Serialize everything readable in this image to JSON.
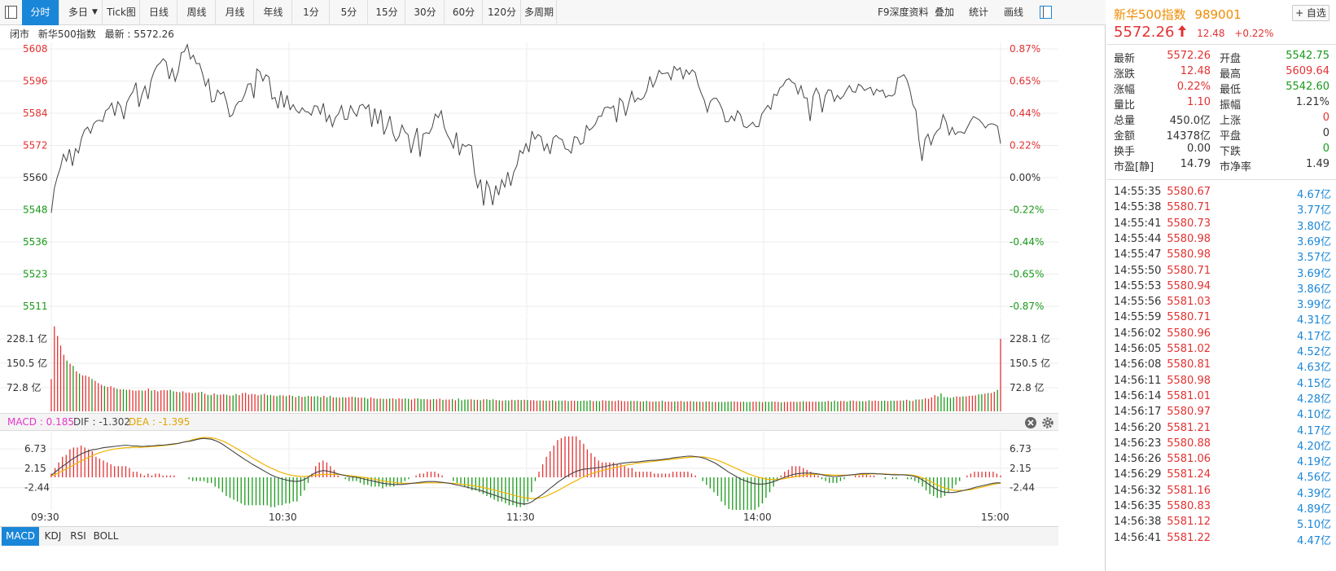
{
  "toolbar": {
    "tabs": [
      "分时",
      "多日",
      "Tick图",
      "日线",
      "周线",
      "月线",
      "年线",
      "1分",
      "5分",
      "15分",
      "30分",
      "60分",
      "120分",
      "多周期"
    ],
    "active_tab": "分时",
    "tools": [
      "F9深度资料",
      "叠加",
      "统计",
      "画线"
    ]
  },
  "info": {
    "status": "闭市",
    "name": "新华500指数",
    "latest_label": "最新",
    "latest_value": "5572.26"
  },
  "chart": {
    "price_left_ticks": [
      "5608",
      "5596",
      "5584",
      "5572",
      "5560",
      "5548",
      "5536",
      "5523",
      "5511"
    ],
    "price_right_ticks": [
      "0.87%",
      "0.65%",
      "0.44%",
      "0.22%",
      "0.00%",
      "-0.22%",
      "-0.44%",
      "-0.65%",
      "-0.87%"
    ],
    "volume_ticks": [
      "228.1 亿",
      "150.5 亿",
      "72.8 亿"
    ],
    "macd_ticks": [
      "6.73",
      "2.15",
      "-2.44"
    ],
    "x_labels": [
      "09:30",
      "10:30",
      "11:30",
      "14:00",
      "15:00"
    ],
    "macd_header": {
      "macd_label": "MACD : 0.185",
      "dif_label": "DIF : -1.302",
      "dea_label": "DEA : -1.395"
    },
    "colors": {
      "up": "#e33232",
      "down": "#1a9a1a",
      "line": "#444444",
      "dea": "#f0b400",
      "macd_label": "#e535c9",
      "accent": "#1a86d8",
      "name": "#f08c00"
    },
    "price_series": [
      5546.2,
      5555.4,
      5559.7,
      5563.1,
      5568.3,
      5565.7,
      5570.2,
      5563.9,
      5570.4,
      5568.8,
      5574.3,
      5577.4,
      5578.5,
      5576.2,
      5579.8,
      5580.9,
      5581.1,
      5580.6,
      5584.7,
      5585.6,
      5587.6,
      5582.8,
      5588.1,
      5586.2,
      5581.5,
      5587.8,
      5590.1,
      5591.9,
      5595.3,
      5586.1,
      5590.8,
      5594.0,
      5589.1,
      5596.1,
      5599.5,
      5601.7,
      5602.7,
      5604.3,
      5603.1,
      5596.6,
      5600.6,
      5595.8,
      5599.6,
      5606.6,
      5607.0,
      5609.6,
      5604.2,
      5605.6,
      5602.4,
      5602.5,
      5598.7,
      5594.0,
      5596.6,
      5588.0,
      5588.2,
      5592.5,
      5590.9,
      5591.8,
      5587.9,
      5582.4,
      5583.2,
      5586.6,
      5588.1,
      5588.3,
      5590.9,
      5594.7,
      5594.9,
      5589.4,
      5600.4,
      5599.4,
      5595.9,
      5598.2,
      5597.4,
      5589.1,
      5589.7,
      5585.6,
      5592.2,
      5585.9,
      5590.5,
      5585.1,
      5587.0,
      5584.8,
      5583.8,
      5585.8,
      5584.4,
      5584.2,
      5583.0,
      5586.6,
      5586.4,
      5583.4,
      5587.5,
      5580.6,
      5583.0,
      5578.7,
      5582.2,
      5583.5,
      5586.6,
      5581.4,
      5581.5,
      5586.6,
      5584.3,
      5582.6,
      5586.6,
      5587.1,
      5585.4,
      5586.9,
      5578.6,
      5585.6,
      5579.7,
      5585.1,
      5575.7,
      5578.7,
      5582.7,
      5576.3,
      5573.2,
      5574.9,
      5579.3,
      5576.7,
      5575.7,
      5568.7,
      5573.9,
      5578.2,
      5567.3,
      5575.9,
      5576.4,
      5576.1,
      5578.5,
      5583.4,
      5582.1,
      5584.7,
      5578.4,
      5575.5,
      5573.5,
      5570.6,
      5576.5,
      5567.9,
      5572.1,
      5571.2,
      5571.9,
      5571.5,
      5561.0,
      5555.7,
      5558.8,
      5548.9,
      5558.2,
      5555.5,
      5549.1,
      5556.5,
      5552.9,
      5558.7,
      5555.9,
      5561.6,
      5556.4,
      5561.6,
      5564.0,
      5569.7,
      5568.6,
      5572.3,
      5569.1,
      5577.0,
      5574.0,
      5575.7,
      5574.9,
      5569.7,
      5572.2,
      5568.4,
      5574.4,
      5575.4,
      5574.3,
      5573.8,
      5570.3,
      5570.0,
      5568.7,
      5574.9,
      5574.6,
      5572.0,
      5572.6,
      5579.1,
      5577.3,
      5578.3,
      5579.7,
      5582.6,
      5582.6,
      5585.8,
      5586.1,
      5585.6,
      5586.5,
      5580.3,
      5589.4,
      5588.1,
      5582.8,
      5587.6,
      5592.0,
      5588.0,
      5589.5,
      5588.8,
      5589.7,
      5592.3,
      5597.6,
      5593.6,
      5596.2,
      5599.9,
      5598.6,
      5598.8,
      5599.0,
      5596.4,
      5601.4,
      5599.9,
      5600.9,
      5596.7,
      5600.1,
      5598.4,
      5600.1,
      5599.1,
      5594.3,
      5591.2,
      5588.6,
      5584.2,
      5588.2,
      5589.3,
      5589.4,
      5587.6,
      5585.0,
      5580.5,
      5580.6,
      5582.7,
      5580.9,
      5584.7,
      5583.1,
      5578.8,
      5578.3,
      5579.2,
      5580.3,
      5578.7,
      5578.7,
      5583.4,
      5585.1,
      5586.7,
      5585.2,
      5590.9,
      5590.4,
      5593.3,
      5594.1,
      5596.2,
      5596.8,
      5595.5,
      5594.8,
      5591.0,
      5594.1,
      5589.6,
      5589.5,
      5580.8,
      5590.3,
      5593.2,
      5590.9,
      5584.1,
      5590.3,
      5592.6,
      5592.3,
      5588.2,
      5590.5,
      5589.1,
      5590.2,
      5592.4,
      5594.2,
      5591.9,
      5591.6,
      5594.7,
      5593.9,
      5592.3,
      5593.0,
      5593.5,
      5590.6,
      5592.8,
      5591.9,
      5592.5,
      5589.7,
      5590.5,
      5590.2,
      5591.0,
      5597.1,
      5597.5,
      5598.3,
      5596.4,
      5592.6,
      5586.9,
      5584.9,
      5573.7,
      5565.8,
      5574.0,
      5575.9,
      5571.8,
      5575.4,
      5577.1,
      5578.1,
      5583.2,
      5580.5,
      5575.6,
      5578.4,
      5575.7,
      5576.7,
      5576.7,
      5576.1,
      5578.4,
      5580.7,
      5582.5,
      5581.9,
      5581.2,
      5579.9,
      5578.2,
      5579.5,
      5579.8,
      5579.5,
      5578.8,
      5572.3
    ],
    "volume_series": [
      13.3,
      35.2,
      31.2,
      27.2,
      23.4,
      21.0,
      19.7,
      18.8,
      16.5,
      15.6,
      14.9,
      14.8,
      14.3,
      13.4,
      12.6,
      11.7,
      11.0,
      10.5,
      10.1,
      10.4,
      9.8,
      9.3,
      9.1,
      9.1,
      8.9,
      9.0,
      8.7,
      8.5,
      8.7,
      8.6,
      8.6,
      9.4,
      8.6,
      8.8,
      8.3,
      8.7,
      8.8,
      8.7,
      8.9,
      8.3,
      8.1,
      7.9,
      8.3,
      7.7,
      7.8,
      7.5,
      7.8,
      7.9,
      8.1,
      7.3,
      6.8,
      6.8,
      7.4,
      6.9,
      6.9,
      7.1,
      6.8,
      6.5,
      6.6,
      7.2,
      6.7,
      7.6,
      7.7,
      6.9,
      7.2,
      7.1,
      6.6,
      6.9,
      7.2,
      6.7,
      6.8,
      6.5,
      6.3,
      6.7,
      6.6,
      6.3,
      6.7,
      6.4,
      5.9,
      6.4,
      6.0,
      6.1,
      6.4,
      6.2,
      6.2,
      6.3,
      5.9,
      6.4,
      5.8,
      6.4,
      5.8,
      5.8,
      5.7,
      5.9,
      5.7,
      5.9,
      6.1,
      5.9,
      5.7,
      5.7,
      5.7,
      5.2,
      5.8,
      5.4,
      5.2,
      5.3,
      5.2,
      5.1,
      5.3,
      5.4,
      5.0,
      5.4,
      5.2,
      5.4,
      5.2,
      4.9,
      5.3,
      5.4,
      5.1,
      5.1,
      5.0,
      4.9,
      5.1,
      5.0,
      5.3,
      4.8,
      4.9,
      4.9,
      5.1,
      4.6,
      5.3,
      4.6,
      4.9,
      4.9,
      5.0,
      4.8,
      4.8,
      4.6,
      5.0,
      5.0,
      4.7,
      5.0,
      4.7,
      4.6,
      4.4,
      4.6,
      4.5,
      4.8,
      4.6,
      4.8,
      4.7,
      4.8,
      4.7,
      4.6,
      4.6,
      4.4,
      4.5,
      4.5,
      4.4,
      4.4,
      4.6,
      4.2,
      4.5,
      4.4,
      4.5,
      4.2,
      4.4,
      4.4,
      4.3,
      4.3,
      4.5,
      4.3,
      4.6,
      4.2,
      4.3,
      4.2,
      4.6,
      4.4,
      4.4,
      4.3,
      4.2,
      4.6,
      4.3,
      4.2,
      4.2,
      4.3,
      4.3,
      4.3,
      4.1,
      4.1,
      4.3,
      4.1,
      4.0,
      4.1,
      4.1,
      4.4,
      4.0,
      4.1,
      4.0,
      4.1,
      4.1,
      4.3,
      4.0,
      4.1,
      4.2,
      4.1,
      4.0,
      4.0,
      3.9,
      4.1,
      4.1,
      3.9,
      3.9,
      3.9,
      3.9,
      3.9,
      4.0,
      4.1,
      4.1,
      4.0,
      3.9,
      4.0,
      3.8,
      3.9,
      4.0,
      4.0,
      4.0,
      3.8,
      4.0,
      3.9,
      4.1,
      4.0,
      3.9,
      3.7,
      3.9,
      3.9,
      4.0,
      4.0,
      3.9,
      4.0,
      4.2,
      4.0,
      4.1,
      4.0,
      4.0,
      4.0,
      4.0,
      4.0,
      4.3,
      4.0,
      4.4,
      4.1,
      4.3,
      4.3,
      4.0,
      4.4,
      4.5,
      4.2,
      4.2,
      4.2,
      4.2,
      4.6,
      4.3,
      4.5,
      4.3,
      4.3,
      4.4,
      4.2,
      4.4,
      4.4,
      4.4,
      4.5,
      4.5,
      4.8,
      4.4,
      4.3,
      4.9,
      4.9,
      5.0,
      5.4,
      5.2,
      5.8,
      6.7,
      6.2,
      7.4,
      5.9,
      5.9,
      5.6,
      5.9,
      6.2,
      6.0,
      6.2,
      6.2,
      6.4,
      6.5,
      6.6,
      7.0,
      7.1,
      7.3,
      7.6,
      7.6,
      8.1,
      8.9,
      30.0
    ],
    "macd_series": [
      0.5,
      1.2,
      1.9,
      2.6,
      3.2,
      3.9,
      4.5,
      5.0,
      5.5,
      5.9,
      6.2,
      6.5,
      6.6,
      6.8,
      7.0,
      7.1,
      7.2,
      7.3,
      7.4,
      7.5,
      7.6,
      7.5,
      7.4,
      7.4,
      7.3,
      7.3,
      7.4,
      7.4,
      7.5,
      7.6,
      7.6,
      7.7,
      7.8,
      7.9,
      8.0,
      8.2,
      8.4,
      8.5,
      8.7,
      8.9,
      9.1,
      9.2,
      9.1,
      9.0,
      8.7,
      8.3,
      7.8,
      7.2,
      6.6,
      6.0,
      5.4,
      4.8,
      4.2,
      3.7,
      3.1,
      2.6,
      2.1,
      1.6,
      1.1,
      0.6,
      0.2,
      -0.1,
      -0.4,
      -0.6,
      -0.8,
      -0.9,
      -1.0,
      -0.8,
      -0.5,
      0.0,
      0.6,
      1.1,
      1.4,
      1.6,
      1.5,
      1.3,
      1.1,
      0.8,
      0.6,
      0.4,
      0.2,
      0.1,
      0.0,
      -0.2,
      -0.4,
      -0.6,
      -0.8,
      -1.0,
      -1.2,
      -1.4,
      -1.5,
      -1.6,
      -1.7,
      -1.7,
      -1.7,
      -1.6,
      -1.5,
      -1.4,
      -1.3,
      -1.2,
      -1.1,
      -1.0,
      -1.0,
      -1.0,
      -1.1,
      -1.2,
      -1.3,
      -1.4,
      -1.6,
      -1.8,
      -2.0,
      -2.2,
      -2.4,
      -2.6,
      -2.8,
      -3.0,
      -3.3,
      -3.6,
      -3.9,
      -4.2,
      -4.5,
      -4.8,
      -5.1,
      -5.4,
      -5.7,
      -6.0,
      -6.2,
      -6.3,
      -6.2,
      -5.8,
      -5.2,
      -4.6,
      -4.0,
      -3.3,
      -2.6,
      -1.9,
      -1.2,
      -0.6,
      0.0,
      0.5,
      1.0,
      1.4,
      1.7,
      1.9,
      2.0,
      2.1,
      2.2,
      2.3,
      2.4,
      2.6,
      2.8,
      3.0,
      3.1,
      3.3,
      3.4,
      3.5,
      3.6,
      3.6,
      3.7,
      3.8,
      3.9,
      4.0,
      4.0,
      4.1,
      4.2,
      4.3,
      4.4,
      4.6,
      4.7,
      4.8,
      4.9,
      5.0,
      5.0,
      4.9,
      4.8,
      4.6,
      4.3,
      3.9,
      3.5,
      3.0,
      2.4,
      1.8,
      1.2,
      0.7,
      0.2,
      -0.3,
      -0.7,
      -1.0,
      -1.3,
      -1.5,
      -1.6,
      -1.6,
      -1.5,
      -1.3,
      -1.0,
      -0.7,
      -0.3,
      0.0,
      0.3,
      0.6,
      0.8,
      0.9,
      1.0,
      1.0,
      1.0,
      0.9,
      0.8,
      0.6,
      0.4,
      0.3,
      0.2,
      0.2,
      0.3,
      0.4,
      0.5,
      0.6,
      0.7,
      0.8,
      0.9,
      0.9,
      0.9,
      0.9,
      0.8,
      0.8,
      0.7,
      0.7,
      0.6,
      0.6,
      0.6,
      0.6,
      0.5,
      0.4,
      0.2,
      -0.1,
      -0.6,
      -1.2,
      -1.8,
      -2.4,
      -2.9,
      -3.3,
      -3.5,
      -3.6,
      -3.6,
      -3.5,
      -3.3,
      -3.1,
      -2.9,
      -2.7,
      -2.4,
      -2.2,
      -2.0,
      -1.8,
      -1.6,
      -1.4,
      -1.3,
      -1.3
    ],
    "dea_series": [
      0.3,
      0.7,
      1.1,
      1.5,
      2.0,
      2.4,
      2.9,
      3.4,
      3.8,
      4.3,
      4.7,
      5.1,
      5.5,
      5.8,
      6.1,
      6.3,
      6.5,
      6.7,
      6.8,
      6.9,
      7.0,
      7.0,
      7.1,
      7.1,
      7.1,
      7.2,
      7.2,
      7.3,
      7.3,
      7.4,
      7.5,
      7.6,
      7.7,
      7.8,
      8.0,
      8.2,
      8.4,
      8.6,
      8.9,
      9.1,
      9.3,
      9.4,
      9.4,
      9.3,
      9.2,
      8.9,
      8.6,
      8.2,
      7.7,
      7.2,
      6.7,
      6.2,
      5.7,
      5.2,
      4.6,
      4.1,
      3.6,
      3.1,
      2.6,
      2.2,
      1.8,
      1.4,
      1.1,
      0.8,
      0.6,
      0.4,
      0.3,
      0.2,
      0.2,
      0.3,
      0.4,
      0.5,
      0.6,
      0.7,
      0.7,
      0.7,
      0.7,
      0.7,
      0.6,
      0.5,
      0.4,
      0.3,
      0.2,
      0.1,
      0.0,
      -0.2,
      -0.3,
      -0.5,
      -0.7,
      -0.8,
      -1.0,
      -1.1,
      -1.2,
      -1.3,
      -1.4,
      -1.4,
      -1.4,
      -1.4,
      -1.4,
      -1.4,
      -1.3,
      -1.3,
      -1.3,
      -1.3,
      -1.3,
      -1.3,
      -1.3,
      -1.4,
      -1.4,
      -1.5,
      -1.6,
      -1.7,
      -1.8,
      -1.9,
      -2.1,
      -2.2,
      -2.4,
      -2.6,
      -2.8,
      -3.0,
      -3.2,
      -3.5,
      -3.7,
      -3.9,
      -4.2,
      -4.4,
      -4.6,
      -4.8,
      -4.9,
      -5.0,
      -5.0,
      -4.9,
      -4.7,
      -4.4,
      -4.0,
      -3.6,
      -3.2,
      -2.7,
      -2.2,
      -1.7,
      -1.2,
      -0.8,
      -0.3,
      0.1,
      0.5,
      0.8,
      1.1,
      1.4,
      1.6,
      1.8,
      2.0,
      2.2,
      2.4,
      2.6,
      2.8,
      3.0,
      3.1,
      3.3,
      3.4,
      3.5,
      3.6,
      3.7,
      3.8,
      3.9,
      4.0,
      4.1,
      4.2,
      4.3,
      4.4,
      4.5,
      4.6,
      4.7,
      4.8,
      4.8,
      4.8,
      4.8,
      4.7,
      4.5,
      4.3,
      4.0,
      3.7,
      3.3,
      2.9,
      2.5,
      2.1,
      1.7,
      1.3,
      0.9,
      0.6,
      0.3,
      0.0,
      -0.2,
      -0.4,
      -0.5,
      -0.5,
      -0.5,
      -0.4,
      -0.3,
      -0.1,
      0.0,
      0.2,
      0.3,
      0.5,
      0.6,
      0.7,
      0.7,
      0.7,
      0.7,
      0.6,
      0.6,
      0.5,
      0.5,
      0.5,
      0.5,
      0.5,
      0.6,
      0.6,
      0.7,
      0.7,
      0.7,
      0.8,
      0.8,
      0.8,
      0.8,
      0.8,
      0.7,
      0.7,
      0.7,
      0.6,
      0.6,
      0.6,
      0.5,
      0.4,
      0.2,
      -0.1,
      -0.5,
      -0.9,
      -1.4,
      -1.8,
      -2.2,
      -2.5,
      -2.8,
      -3.0,
      -3.1,
      -3.1,
      -3.1,
      -3.0,
      -2.9,
      -2.7,
      -2.5,
      -2.3,
      -2.1,
      -1.9,
      -1.7,
      -1.5,
      -1.4
    ]
  },
  "quote": {
    "name": "新华500指数",
    "code": "989001",
    "add_fav": "+ 自选",
    "price": "5572.26",
    "change": "12.48",
    "change_pct": "+0.22%",
    "rows": [
      {
        "l1": "最新",
        "v1": "5572.26",
        "l2": "开盘",
        "v2": "5542.75"
      },
      {
        "l1": "涨跌",
        "v1": "12.48",
        "l2": "最高",
        "v2": "5609.64"
      },
      {
        "l1": "涨幅",
        "v1": "0.22%",
        "l2": "最低",
        "v2": "5542.60"
      },
      {
        "l1": "量比",
        "v1": "1.10",
        "l2": "振幅",
        "v2": "1.21%"
      },
      {
        "l1": "总量",
        "v1": "450.0亿",
        "l2": "上涨",
        "v2": "0"
      },
      {
        "l1": "金额",
        "v1": "14378亿",
        "l2": "平盘",
        "v2": "0"
      },
      {
        "l1": "换手",
        "v1": "0.00",
        "l2": "下跌",
        "v2": "0"
      },
      {
        "l1": "市盈[静]",
        "v1": "14.79",
        "l2": "市净率",
        "v2": "1.49"
      }
    ]
  },
  "ticks": [
    {
      "time": "14:55:35",
      "price": "5580.67",
      "amount": "4.67亿"
    },
    {
      "time": "14:55:38",
      "price": "5580.71",
      "amount": "3.77亿"
    },
    {
      "time": "14:55:41",
      "price": "5580.73",
      "amount": "3.80亿"
    },
    {
      "time": "14:55:44",
      "price": "5580.98",
      "amount": "3.69亿"
    },
    {
      "time": "14:55:47",
      "price": "5580.98",
      "amount": "3.57亿"
    },
    {
      "time": "14:55:50",
      "price": "5580.71",
      "amount": "3.69亿"
    },
    {
      "time": "14:55:53",
      "price": "5580.94",
      "amount": "3.86亿"
    },
    {
      "time": "14:55:56",
      "price": "5581.03",
      "amount": "3.99亿"
    },
    {
      "time": "14:55:59",
      "price": "5580.71",
      "amount": "4.31亿"
    },
    {
      "time": "14:56:02",
      "price": "5580.96",
      "amount": "4.17亿"
    },
    {
      "time": "14:56:05",
      "price": "5581.02",
      "amount": "4.52亿"
    },
    {
      "time": "14:56:08",
      "price": "5580.81",
      "amount": "4.63亿"
    },
    {
      "time": "14:56:11",
      "price": "5580.98",
      "amount": "4.15亿"
    },
    {
      "time": "14:56:14",
      "price": "5581.01",
      "amount": "4.28亿"
    },
    {
      "time": "14:56:17",
      "price": "5580.97",
      "amount": "4.10亿"
    },
    {
      "time": "14:56:20",
      "price": "5581.21",
      "amount": "4.17亿"
    },
    {
      "time": "14:56:23",
      "price": "5580.88",
      "amount": "4.20亿"
    },
    {
      "time": "14:56:26",
      "price": "5581.06",
      "amount": "4.19亿"
    },
    {
      "time": "14:56:29",
      "price": "5581.24",
      "amount": "4.56亿"
    },
    {
      "time": "14:56:32",
      "price": "5581.16",
      "amount": "4.39亿"
    },
    {
      "time": "14:56:35",
      "price": "5580.83",
      "amount": "4.89亿"
    },
    {
      "time": "14:56:38",
      "price": "5581.12",
      "amount": "5.10亿"
    },
    {
      "time": "14:56:41",
      "price": "5581.22",
      "amount": "4.47亿"
    }
  ],
  "bottom_tabs": [
    "MACD",
    "KDJ",
    "RSI",
    "BOLL"
  ],
  "active_bottom_tab": "MACD"
}
